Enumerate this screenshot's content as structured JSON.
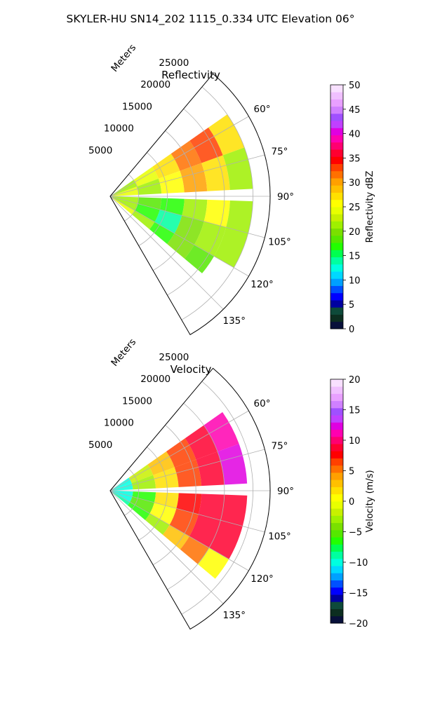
{
  "figure": {
    "suptitle": "SKYLER-HU  SN14_202  1115_0.334 UTC Elevation 06°"
  },
  "chart_data": [
    {
      "type": "heatmap",
      "subtype": "polar-sector (PPI)",
      "title": "Reflectivity",
      "radial_axis_label": "Meters",
      "radial_ticks": [
        "5000",
        "10000",
        "15000",
        "20000",
        "25000"
      ],
      "angular_ticks": [
        "60°",
        "75°",
        "90°",
        "105°",
        "120°",
        "135°"
      ],
      "angle_range_deg": [
        40,
        150
      ],
      "range_max_m": 28000,
      "grid": true,
      "colorbar": {
        "label": "Reflectivity dBZ",
        "range": [
          0,
          50
        ],
        "ticks": [
          "0",
          "5",
          "10",
          "15",
          "20",
          "25",
          "30",
          "35",
          "40",
          "45",
          "50"
        ],
        "colors": [
          "#08103a",
          "#0c2e20",
          "#0e4a3a",
          "#0000a0",
          "#0000ff",
          "#0050ff",
          "#00a0ff",
          "#00d8ff",
          "#00ffe0",
          "#00ffa0",
          "#00ff50",
          "#22ff00",
          "#55e800",
          "#7ae000",
          "#9ff000",
          "#c8f000",
          "#e8ff00",
          "#ffff00",
          "#ffe000",
          "#ffc000",
          "#ffa000",
          "#ff7000",
          "#ff4000",
          "#ff0000",
          "#ff0030",
          "#ff0070",
          "#ff00b0",
          "#e000e0",
          "#c040ff",
          "#a050ff",
          "#d080ff",
          "#e8a0ff",
          "#f0c0ff",
          "#f8e0ff"
        ]
      },
      "cells": {
        "ranges_km": [
          3,
          7,
          11,
          15,
          19,
          23
        ],
        "azimuth_sectors": [
          {
            "az": [
              55,
              70
            ],
            "values": [
              22,
              24,
              27,
              31,
              33,
              27
            ]
          },
          {
            "az": [
              70,
              87
            ],
            "values": [
              24,
              22,
              26,
              30,
              27,
              22
            ]
          },
          {
            "az": [
              92,
              105
            ],
            "values": [
              21,
              19,
              17,
              22,
              25,
              22
            ]
          },
          {
            "az": [
              105,
              120
            ],
            "values": [
              22,
              17,
              14,
              20,
              22,
              21
            ]
          },
          {
            "az": [
              120,
              130
            ],
            "values": [
              24,
              21,
              17,
              20,
              19,
              0
            ]
          }
        ]
      }
    },
    {
      "type": "heatmap",
      "subtype": "polar-sector (PPI)",
      "title": "Velocity",
      "radial_axis_label": "Meters",
      "radial_ticks": [
        "5000",
        "10000",
        "15000",
        "20000",
        "25000"
      ],
      "angular_ticks": [
        "60°",
        "75°",
        "90°",
        "105°",
        "120°",
        "135°"
      ],
      "angle_range_deg": [
        40,
        150
      ],
      "range_max_m": 28000,
      "grid": true,
      "colorbar": {
        "label": "Velocity (m/s)",
        "range": [
          -20,
          20
        ],
        "ticks": [
          "−20",
          "−15",
          "−10",
          "−5",
          "0",
          "5",
          "10",
          "15",
          "20"
        ],
        "colors": [
          "#08103a",
          "#0c2e20",
          "#0e4a3a",
          "#0000a0",
          "#0000ff",
          "#0050ff",
          "#00a0ff",
          "#00d8ff",
          "#00ffe0",
          "#00ffa0",
          "#00ff50",
          "#22ff00",
          "#55e800",
          "#7ae000",
          "#9ff000",
          "#c8f000",
          "#e8ff00",
          "#ffff00",
          "#ffe000",
          "#ffc000",
          "#ffa000",
          "#ff7000",
          "#ff4000",
          "#ff0000",
          "#ff0030",
          "#ff0070",
          "#ff00b0",
          "#e000e0",
          "#c040ff",
          "#a050ff",
          "#d080ff",
          "#e8a0ff",
          "#f0c0ff",
          "#f8e0ff"
        ]
      },
      "cells": {
        "ranges_km": [
          2,
          6,
          10,
          14,
          18,
          22
        ],
        "azimuth_sectors": [
          {
            "az": [
              55,
              70
            ],
            "values": [
              -10,
              -2,
              3,
              7,
              9,
              11
            ]
          },
          {
            "az": [
              70,
              87
            ],
            "values": [
              -10,
              -3,
              2,
              6,
              9,
              12
            ]
          },
          {
            "az": [
              92,
              105
            ],
            "values": [
              -10,
              -6,
              2,
              8,
              9,
              9
            ]
          },
          {
            "az": [
              105,
              120
            ],
            "values": [
              -10,
              -5,
              0,
              6,
              9,
              9
            ]
          },
          {
            "az": [
              120,
              130
            ],
            "values": [
              -9,
              -6,
              -3,
              3,
              5,
              0
            ]
          }
        ]
      }
    }
  ]
}
